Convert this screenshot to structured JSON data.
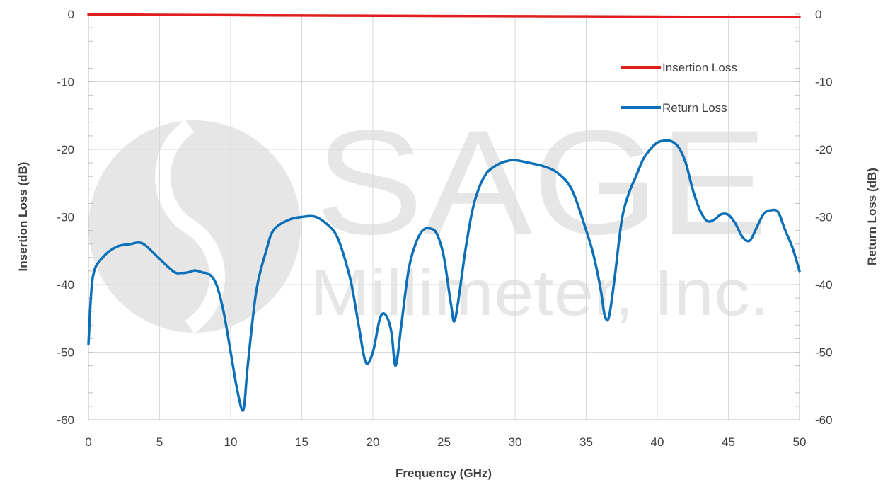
{
  "watermark": {
    "line1": "SAGE",
    "line2": "Millimeter, Inc.",
    "color": "#e6e6e6"
  },
  "chart_data": {
    "type": "line",
    "xlabel": "Frequency (GHz)",
    "ylabel_left": "Insertion Loss (dB)",
    "ylabel_right": "Return Loss (dB)",
    "xlim": [
      0,
      50
    ],
    "ylim": [
      -60,
      0
    ],
    "y2lim": [
      -60,
      0
    ],
    "x_ticks": [
      "0",
      "5",
      "10",
      "15",
      "20",
      "25",
      "30",
      "35",
      "40",
      "45",
      "50"
    ],
    "y_ticks": [
      "0",
      "-10",
      "-20",
      "-30",
      "-40",
      "-50",
      "-60"
    ],
    "y2_ticks": [
      "0",
      "-10",
      "-20",
      "-30",
      "-40",
      "-50",
      "-60"
    ],
    "grid": true,
    "legend_position": "upper-right",
    "series": [
      {
        "name": "Insertion Loss",
        "color": "#e01e1e",
        "axis": "left",
        "x": [
          0,
          5,
          10,
          15,
          20,
          25,
          30,
          35,
          40,
          45,
          50
        ],
        "y": [
          -0.05,
          -0.1,
          -0.15,
          -0.2,
          -0.23,
          -0.27,
          -0.3,
          -0.33,
          -0.37,
          -0.42,
          -0.45
        ]
      },
      {
        "name": "Return Loss",
        "color": "#0c70b9",
        "axis": "right",
        "x": [
          0,
          0.3,
          1,
          2,
          3,
          3.5,
          4,
          5,
          6,
          6.5,
          7,
          7.5,
          8,
          8.5,
          9,
          9.5,
          10,
          10.5,
          10.9,
          11.2,
          11.8,
          12.5,
          13,
          14,
          15,
          16,
          17,
          17.5,
          18,
          18.5,
          19,
          19.5,
          20,
          20.5,
          20.9,
          21.3,
          21.6,
          22,
          22.5,
          23,
          23.5,
          24,
          24.5,
          25,
          25.5,
          25.8,
          26.5,
          27,
          27.5,
          28,
          28.5,
          29,
          29.5,
          30,
          31,
          32,
          33,
          34,
          35,
          35.5,
          36,
          36.3,
          36.6,
          37,
          37.5,
          38,
          38.5,
          39,
          39.5,
          40,
          40.5,
          41,
          41.5,
          42,
          42.5,
          43,
          43.5,
          44,
          44.5,
          45,
          45.5,
          46,
          46.5,
          47,
          47.5,
          48,
          48.5,
          49,
          49.5,
          50
        ],
        "y": [
          -48.8,
          -39,
          -36,
          -34.4,
          -34,
          -33.8,
          -34.2,
          -36.2,
          -38.1,
          -38.3,
          -38.2,
          -37.9,
          -38.2,
          -38.5,
          -40,
          -44,
          -50,
          -56,
          -58.5,
          -52,
          -41,
          -35,
          -32,
          -30.5,
          -30,
          -30,
          -31.5,
          -33,
          -36,
          -40,
          -46,
          -51.5,
          -50,
          -45,
          -44.5,
          -47,
          -52,
          -46,
          -38,
          -34,
          -32,
          -31.7,
          -32.5,
          -36,
          -43,
          -45,
          -35,
          -29,
          -25.5,
          -23.5,
          -22.6,
          -22,
          -21.7,
          -21.6,
          -22,
          -22.5,
          -23.5,
          -26,
          -32,
          -35.5,
          -40.5,
          -44.5,
          -44.8,
          -39,
          -30.5,
          -26.5,
          -24,
          -21.5,
          -20,
          -19,
          -18.7,
          -18.8,
          -19.7,
          -22,
          -26,
          -29,
          -30.6,
          -30.4,
          -29.6,
          -29.7,
          -31,
          -33,
          -33.5,
          -31.5,
          -29.5,
          -29,
          -29.3,
          -32,
          -34.5,
          -38
        ]
      }
    ]
  }
}
